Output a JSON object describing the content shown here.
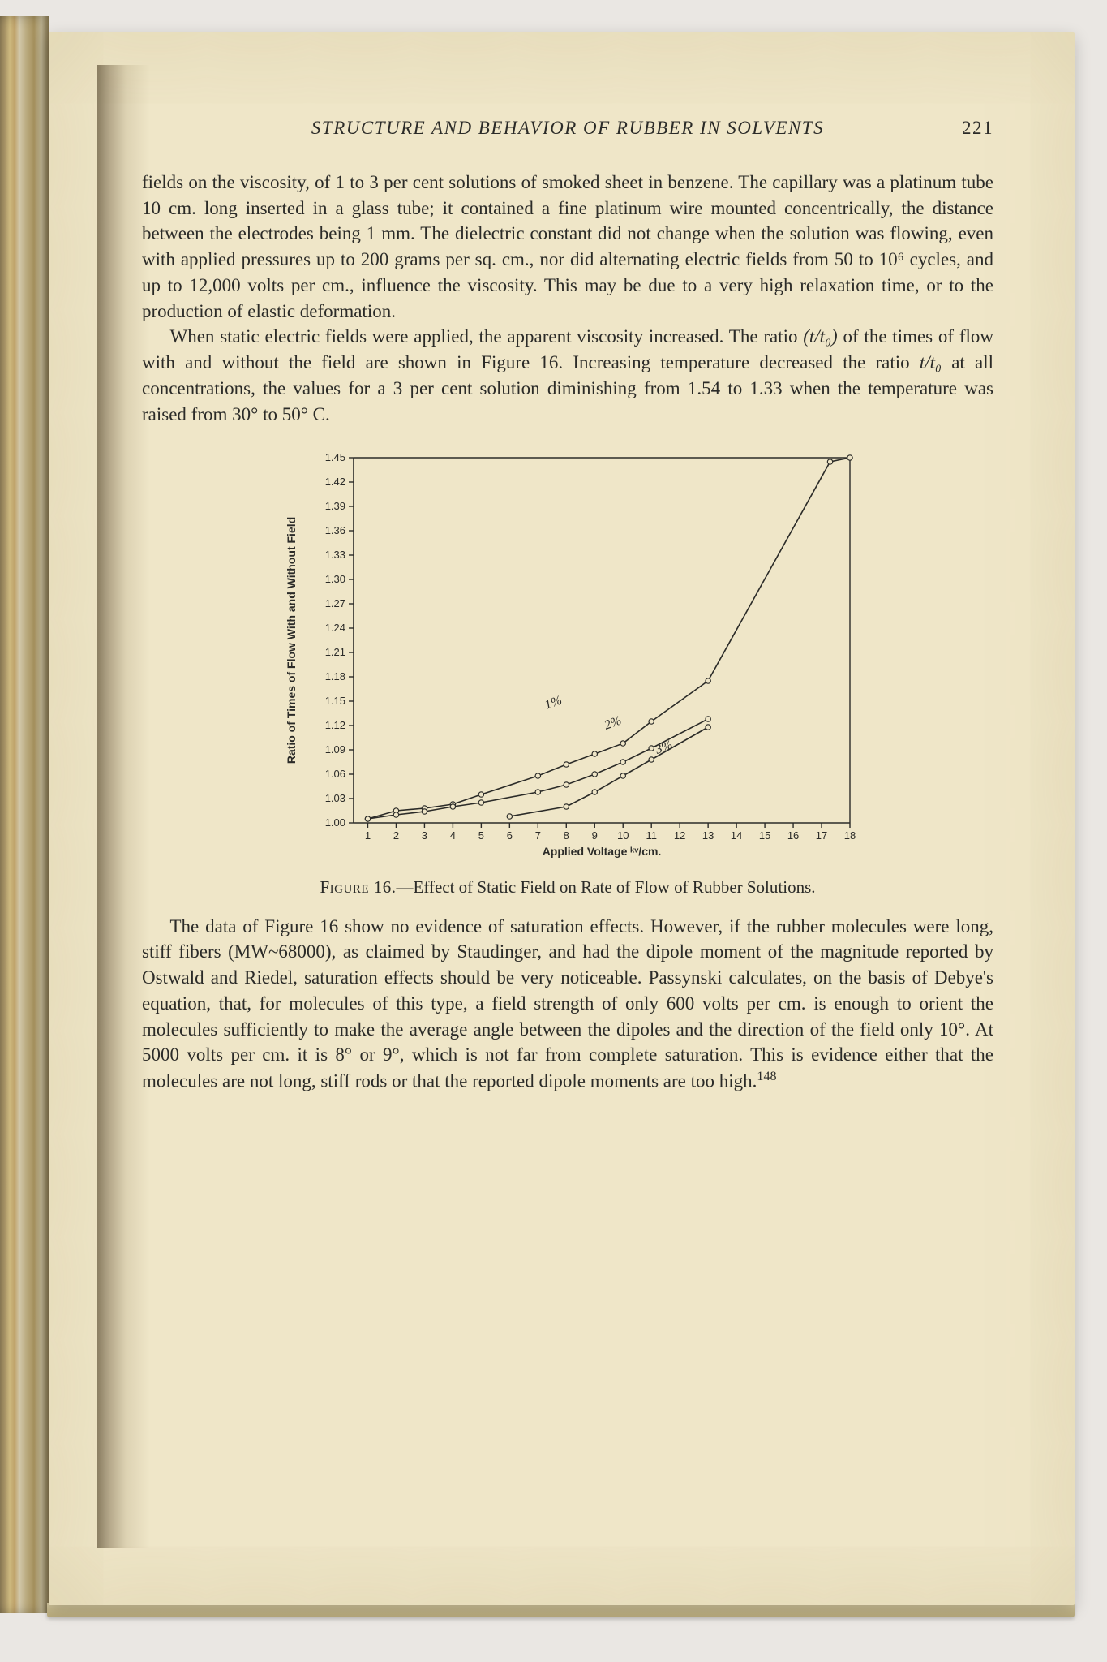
{
  "header": {
    "title": "STRUCTURE AND BEHAVIOR OF RUBBER IN SOLVENTS",
    "page_number": "221"
  },
  "para1": "fields on the viscosity, of 1 to 3 per cent solutions of smoked sheet in benzene. The capillary was a platinum tube 10 cm. long inserted in a glass tube; it contained a fine platinum wire mounted concentrically, the distance between the electrodes being 1 mm. The dielectric constant did not change when the solution was flowing, even with applied pressures up to 200 grams per sq. cm., nor did alternating electric fields from 50 to 10⁶ cycles, and up to 12,000 volts per cm., influence the viscosity. This may be due to a very high relaxation time, or to the production of elastic deformation.",
  "para2_a": "When static electric fields were applied, the apparent viscosity increased. The ratio ",
  "para2_ratio": "(t/t₀)",
  "para2_b": " of the times of flow with and without the field are shown in Figure 16. Increasing temperature decreased the ratio ",
  "para2_ratio2": "t/t₀",
  "para2_c": " at all concentrations, the values for a 3 per cent solution diminishing from 1.54 to 1.33 when the temperature was raised from 30° to 50° C.",
  "figure": {
    "type": "line",
    "caption_label": "Figure 16.",
    "caption_text": "—Effect of Static Field on Rate of Flow of Rubber Solutions.",
    "x_label": "Applied Voltage ᵏᵛ/cm.",
    "y_label": "Ratio of Times of Flow With and Without Field",
    "x_ticks": [
      1,
      2,
      3,
      4,
      5,
      6,
      7,
      8,
      9,
      10,
      11,
      12,
      13,
      14,
      15,
      16,
      17,
      18
    ],
    "y_ticks": [
      1.0,
      1.03,
      1.06,
      1.09,
      1.12,
      1.15,
      1.18,
      1.21,
      1.24,
      1.27,
      1.3,
      1.33,
      1.36,
      1.39,
      1.42,
      1.45
    ],
    "x_range": [
      0.5,
      18
    ],
    "y_range": [
      1.0,
      1.45
    ],
    "series": [
      {
        "name": "1%",
        "label": "1%",
        "label_at": [
          7.3,
          1.14
        ],
        "points": [
          [
            1,
            1.005
          ],
          [
            2,
            1.015
          ],
          [
            3,
            1.018
          ],
          [
            4,
            1.023
          ],
          [
            5,
            1.035
          ],
          [
            7,
            1.058
          ],
          [
            8,
            1.072
          ],
          [
            9,
            1.085
          ],
          [
            10,
            1.098
          ],
          [
            11,
            1.125
          ],
          [
            13,
            1.175
          ],
          [
            17.3,
            1.445
          ],
          [
            18,
            1.45
          ]
        ]
      },
      {
        "name": "2%",
        "label": "2%",
        "label_at": [
          9.4,
          1.115
        ],
        "points": [
          [
            1,
            1.005
          ],
          [
            2,
            1.01
          ],
          [
            3,
            1.014
          ],
          [
            4,
            1.02
          ],
          [
            5,
            1.025
          ],
          [
            7,
            1.038
          ],
          [
            8,
            1.047
          ],
          [
            9,
            1.06
          ],
          [
            10,
            1.075
          ],
          [
            11,
            1.092
          ],
          [
            13,
            1.128
          ]
        ]
      },
      {
        "name": "3%",
        "label": "3%",
        "label_at": [
          11.2,
          1.085
        ],
        "points": [
          [
            6,
            1.008
          ],
          [
            8,
            1.02
          ],
          [
            9,
            1.038
          ],
          [
            10,
            1.058
          ],
          [
            11,
            1.078
          ],
          [
            13,
            1.118
          ]
        ]
      }
    ],
    "colors": {
      "line": "#2b2b28",
      "axis": "#2b2b28",
      "text": "#2b2b28"
    },
    "line_width": 1.6,
    "marker_radius": 3.2,
    "font_size_axis": 13,
    "font_size_series": 16
  },
  "para3_a": "The data of Figure 16 show no evidence of saturation effects. However, if the rubber molecules were long, stiff fibers (MW~68000), as claimed by Staudinger, and had the dipole moment of the magnitude reported by Ostwald and Riedel, saturation effects should be very noticeable. Passynski calculates, on the basis of Debye's equation, that, for molecules of this type, a field strength of only 600 volts per cm. is enough to orient the molecules sufficiently to make the average angle between the dipoles and the direction of the field only 10°. At 5000 volts per cm. it is 8° or 9°, which is not far from complete saturation. This is evidence either that the molecules are not long, stiff rods or that the reported dipole moments are too high.",
  "footnote_mark": "148"
}
